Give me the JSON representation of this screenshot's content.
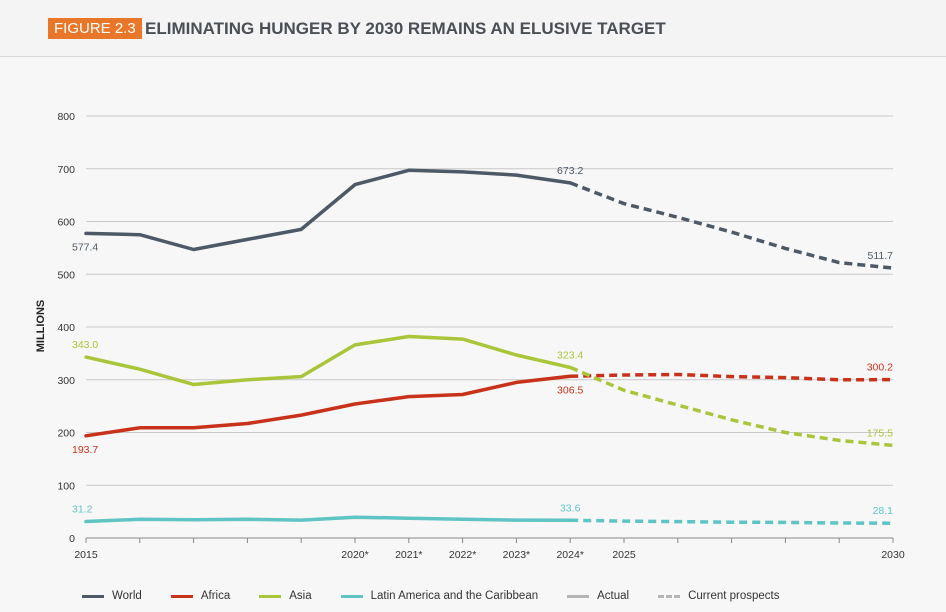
{
  "figure_label": "FIGURE 2.3",
  "title": "ELIMINATING HUNGER BY 2030 REMAINS AN ELUSIVE TARGET",
  "chart_data": {
    "type": "line",
    "ylabel": "MILLIONS",
    "ylim": [
      0,
      800
    ],
    "yticks": [
      0,
      100,
      200,
      300,
      400,
      500,
      600,
      700,
      800
    ],
    "grid": true,
    "x_tick_labels": [
      {
        "x": 2015,
        "label": "2015"
      },
      {
        "x": 2020,
        "label": "2020*"
      },
      {
        "x": 2021,
        "label": "2021*"
      },
      {
        "x": 2022,
        "label": "2022*"
      },
      {
        "x": 2023,
        "label": "2023*"
      },
      {
        "x": 2024,
        "label": "2024*"
      },
      {
        "x": 2025,
        "label": "2025"
      },
      {
        "x": 2030,
        "label": "2030"
      }
    ],
    "xlim": [
      2015,
      2030
    ],
    "actual_end": 2024,
    "series": [
      {
        "name": "World",
        "color": "#4d5966",
        "x": [
          2015,
          2016,
          2017,
          2018,
          2019,
          2020,
          2021,
          2022,
          2023,
          2024,
          2025,
          2026,
          2027,
          2028,
          2029,
          2030
        ],
        "values": [
          577.4,
          575,
          547,
          566,
          585,
          670,
          697,
          694,
          688,
          673.2,
          634,
          608,
          580,
          549,
          522,
          511.7
        ],
        "labels": [
          {
            "x": 2015,
            "text": "577.4",
            "pos": "below"
          },
          {
            "x": 2024,
            "text": "673.2",
            "pos": "above"
          },
          {
            "x": 2030,
            "text": "511.7",
            "pos": "above"
          }
        ]
      },
      {
        "name": "Africa",
        "color": "#c8321b",
        "x": [
          2015,
          2016,
          2017,
          2018,
          2019,
          2020,
          2021,
          2022,
          2023,
          2024,
          2025,
          2026,
          2027,
          2028,
          2029,
          2030
        ],
        "values": [
          193.7,
          209,
          209,
          217,
          233,
          254,
          268,
          272,
          295,
          306.5,
          309,
          310,
          306,
          304,
          300,
          300.2
        ],
        "labels": [
          {
            "x": 2015,
            "text": "193.7",
            "pos": "below"
          },
          {
            "x": 2024,
            "text": "306.5",
            "pos": "below"
          },
          {
            "x": 2030,
            "text": "300.2",
            "pos": "above"
          }
        ]
      },
      {
        "name": "Asia",
        "color": "#a9c539",
        "x": [
          2015,
          2016,
          2017,
          2018,
          2019,
          2020,
          2021,
          2022,
          2023,
          2024,
          2025,
          2026,
          2027,
          2028,
          2029,
          2030
        ],
        "values": [
          343.0,
          320,
          291,
          300,
          306,
          366,
          382,
          377,
          347,
          323.4,
          280,
          252,
          224,
          200,
          185,
          175.5
        ],
        "labels": [
          {
            "x": 2015,
            "text": "343.0",
            "pos": "above"
          },
          {
            "x": 2024,
            "text": "323.4",
            "pos": "above"
          },
          {
            "x": 2030,
            "text": "175.5",
            "pos": "above"
          }
        ]
      },
      {
        "name": "Latin America and the Caribbean",
        "color": "#5ec4c4",
        "x": [
          2015,
          2016,
          2017,
          2018,
          2019,
          2020,
          2021,
          2022,
          2023,
          2024,
          2025,
          2026,
          2027,
          2028,
          2029,
          2030
        ],
        "values": [
          31.2,
          35.5,
          34.5,
          35.5,
          34,
          39.5,
          37.5,
          35.5,
          34,
          33.6,
          32,
          31,
          30,
          29.5,
          28.5,
          28.1
        ],
        "labels": [
          {
            "x": 2015,
            "text": "31.2",
            "pos": "above"
          },
          {
            "x": 2024,
            "text": "33.6",
            "pos": "above"
          },
          {
            "x": 2030,
            "text": "28.1",
            "pos": "above"
          }
        ]
      }
    ],
    "legend": {
      "placement": "bottom",
      "items": [
        {
          "label": "World",
          "color": "#4d5966",
          "style": "solid"
        },
        {
          "label": "Africa",
          "color": "#c8321b",
          "style": "solid"
        },
        {
          "label": "Asia",
          "color": "#a9c539",
          "style": "solid"
        },
        {
          "label": "Latin America and the Caribbean",
          "color": "#5ec4c4",
          "style": "solid"
        },
        {
          "label": "Actual",
          "color": "#b5b5b5",
          "style": "solid"
        },
        {
          "label": "Current prospects",
          "color": "#b5b5b5",
          "style": "dashed"
        }
      ]
    }
  }
}
